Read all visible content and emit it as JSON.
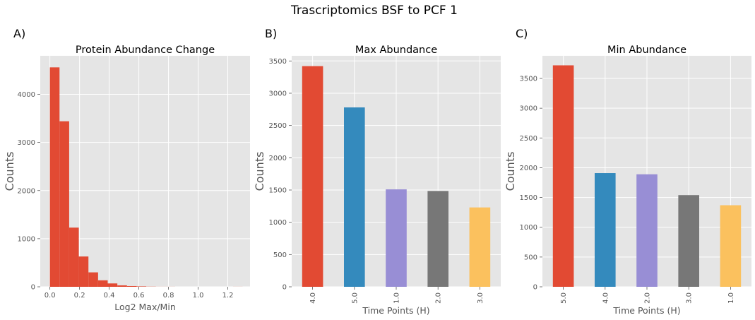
{
  "figure": {
    "title": "Trascriptomics BSF to PCF 1"
  },
  "colors": {
    "background": "#e5e5e5",
    "grid": "#ffffff",
    "c0": "#e24a33",
    "c1": "#348abd",
    "c2": "#988ed5",
    "c3": "#777777",
    "c4": "#fbc15e"
  },
  "chart_data": [
    {
      "panel_label": "A)",
      "type": "bar",
      "subtype": "histogram",
      "title": "Protein Abundance Change",
      "xlabel": "Log2 Max/Min",
      "ylabel": "Counts",
      "xlim": [
        -0.065,
        1.35
      ],
      "ylim": [
        0,
        4800
      ],
      "grid": true,
      "bins": [
        {
          "x0": 0.0,
          "x1": 0.065,
          "value": 4560
        },
        {
          "x0": 0.065,
          "x1": 0.13,
          "value": 3440
        },
        {
          "x0": 0.13,
          "x1": 0.195,
          "value": 1230
        },
        {
          "x0": 0.195,
          "x1": 0.26,
          "value": 630
        },
        {
          "x0": 0.26,
          "x1": 0.325,
          "value": 300
        },
        {
          "x0": 0.325,
          "x1": 0.39,
          "value": 135
        },
        {
          "x0": 0.39,
          "x1": 0.455,
          "value": 70
        },
        {
          "x0": 0.455,
          "x1": 0.52,
          "value": 30
        },
        {
          "x0": 0.52,
          "x1": 0.585,
          "value": 15
        },
        {
          "x0": 0.585,
          "x1": 0.65,
          "value": 8
        },
        {
          "x0": 0.65,
          "x1": 0.715,
          "value": 3
        },
        {
          "x0": 0.715,
          "x1": 0.78,
          "value": 1
        },
        {
          "x0": 0.78,
          "x1": 0.845,
          "value": 1
        },
        {
          "x0": 1.235,
          "x1": 1.3,
          "value": 1
        }
      ],
      "xticks": [
        "0.0",
        "0.2",
        "0.4",
        "0.6",
        "0.8",
        "1.0",
        "1.2"
      ],
      "yticks": [
        "0",
        "1000",
        "2000",
        "3000",
        "4000"
      ]
    },
    {
      "panel_label": "B)",
      "type": "bar",
      "title": "Max Abundance",
      "xlabel": "Time Points (H)",
      "ylabel": "Counts",
      "ylim": [
        0,
        3580
      ],
      "grid": true,
      "categories": [
        "4.0",
        "5.0",
        "1.0",
        "2.0",
        "3.0"
      ],
      "values": [
        3420,
        2780,
        1510,
        1485,
        1230
      ],
      "colors": [
        "#e24a33",
        "#348abd",
        "#988ed5",
        "#777777",
        "#fbc15e"
      ],
      "yticks": [
        "0",
        "500",
        "1000",
        "1500",
        "2000",
        "2500",
        "3000",
        "3500"
      ]
    },
    {
      "panel_label": "C)",
      "type": "bar",
      "title": "Min Abundance",
      "xlabel": "Time Points (H)",
      "ylabel": "Counts",
      "ylim": [
        0,
        3880
      ],
      "grid": true,
      "categories": [
        "5.0",
        "4.0",
        "2.0",
        "3.0",
        "1.0"
      ],
      "values": [
        3720,
        1910,
        1890,
        1540,
        1370
      ],
      "colors": [
        "#e24a33",
        "#348abd",
        "#988ed5",
        "#777777",
        "#fbc15e"
      ],
      "yticks": [
        "0",
        "500",
        "1000",
        "1500",
        "2000",
        "2500",
        "3000",
        "3500"
      ]
    }
  ]
}
